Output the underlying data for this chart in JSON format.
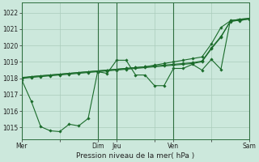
{
  "background_color": "#cce8dc",
  "grid_color": "#aaccbb",
  "line_color": "#1a6b2a",
  "xlabel": "Pression niveau de la mer( hPa )",
  "ylim": [
    1014.3,
    1022.6
  ],
  "yticks": [
    1015,
    1016,
    1017,
    1018,
    1019,
    1020,
    1021,
    1022
  ],
  "xtick_labels": [
    "Mer",
    "",
    "Dim",
    "Jeu",
    "",
    "Ven",
    "",
    "Sam"
  ],
  "xtick_positions": [
    0,
    4,
    8,
    10,
    14,
    16,
    20,
    24
  ],
  "vlines": [
    0,
    8,
    10,
    16,
    24
  ],
  "xlim": [
    0,
    24
  ],
  "series": [
    [
      1018.0,
      1018.1,
      1018.15,
      1018.2,
      1018.25,
      1018.3,
      1018.35,
      1018.4,
      1018.45,
      1018.5,
      1018.55,
      1018.6,
      1018.65,
      1018.7,
      1018.8,
      1018.9,
      1019.0,
      1019.1,
      1019.2,
      1019.3,
      1020.1,
      1021.1,
      1021.5,
      1021.6,
      1021.65
    ],
    [
      1017.9,
      1016.6,
      1015.05,
      1014.8,
      1014.75,
      1015.2,
      1015.1,
      1015.55,
      1018.4,
      1018.3,
      1019.1,
      1019.1,
      1018.2,
      1018.2,
      1017.55,
      1017.55,
      1018.6,
      1018.6,
      1018.85,
      1018.5,
      1019.15,
      1018.55,
      1021.55,
      1021.5,
      1021.65
    ],
    [
      1018.0,
      1018.05,
      1018.1,
      1018.15,
      1018.2,
      1018.25,
      1018.3,
      1018.35,
      1018.4,
      1018.45,
      1018.5,
      1018.55,
      1018.6,
      1018.65,
      1018.7,
      1018.75,
      1018.8,
      1018.85,
      1018.9,
      1019.0,
      1019.8,
      1020.5,
      1021.5,
      1021.6,
      1021.65
    ],
    [
      1018.05,
      1018.1,
      1018.15,
      1018.2,
      1018.25,
      1018.3,
      1018.35,
      1018.4,
      1018.45,
      1018.5,
      1018.55,
      1018.6,
      1018.65,
      1018.7,
      1018.75,
      1018.8,
      1018.85,
      1018.9,
      1018.95,
      1019.05,
      1019.85,
      1020.55,
      1021.45,
      1021.55,
      1021.6
    ]
  ]
}
